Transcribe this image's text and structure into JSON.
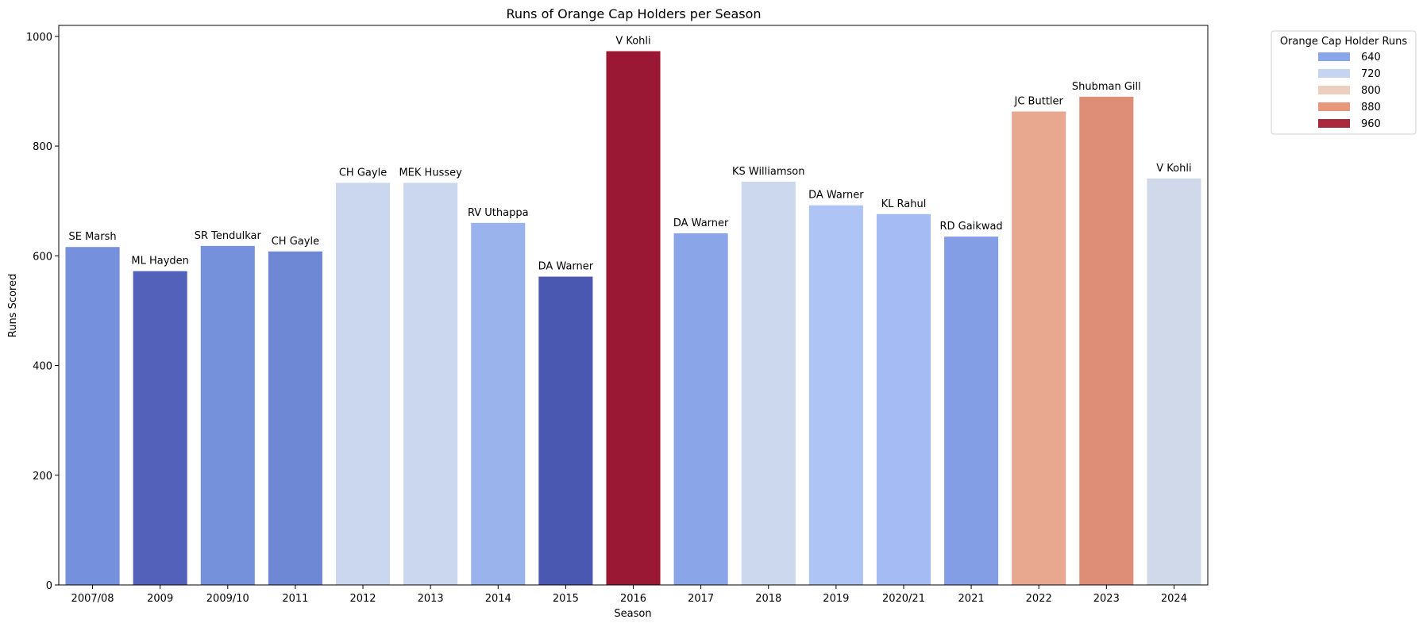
{
  "chart_data": {
    "type": "bar",
    "title": "Runs of Orange Cap Holders per Season",
    "xlabel": "Season",
    "ylabel": "Runs Scored",
    "ylim": [
      0,
      1020
    ],
    "yticks": [
      0,
      200,
      400,
      600,
      800,
      1000
    ],
    "grid": false,
    "categories": [
      "2007/08",
      "2009",
      "2009/10",
      "2011",
      "2012",
      "2013",
      "2014",
      "2015",
      "2016",
      "2017",
      "2018",
      "2019",
      "2020/21",
      "2021",
      "2022",
      "2023",
      "2024"
    ],
    "values": [
      616,
      572,
      618,
      608,
      733,
      733,
      660,
      562,
      973,
      641,
      735,
      692,
      676,
      635,
      863,
      890,
      741
    ],
    "players": [
      "SE Marsh",
      "ML Hayden",
      "SR Tendulkar",
      "CH Gayle",
      "CH Gayle",
      "MEK Hussey",
      "RV Uthappa",
      "DA Warner",
      "V Kohli",
      "DA Warner",
      "KS Williamson",
      "DA Warner",
      "KL Rahul",
      "RD Gaikwad",
      "JC Buttler",
      "Shubman Gill",
      "V Kohli"
    ],
    "bar_colors": [
      "#7590dc",
      "#5461ba",
      "#7591dc",
      "#6f88d6",
      "#cbd7ee",
      "#cbd7ee",
      "#9ab3ed",
      "#4a58b1",
      "#9b1834",
      "#8aa5e8",
      "#ccd8ed",
      "#adc4f4",
      "#a4bcf3",
      "#839ee4",
      "#e8a78f",
      "#de8e77",
      "#d0d9ea"
    ],
    "legend": {
      "title": "Orange Cap Holder Runs",
      "placement": "outside-top-right",
      "entries": [
        {
          "label": "640",
          "color": "#8aa5e8"
        },
        {
          "label": "720",
          "color": "#c4d4f2"
        },
        {
          "label": "800",
          "color": "#ebcfbf"
        },
        {
          "label": "880",
          "color": "#e7977b"
        },
        {
          "label": "960",
          "color": "#aa2a3d"
        }
      ]
    }
  }
}
